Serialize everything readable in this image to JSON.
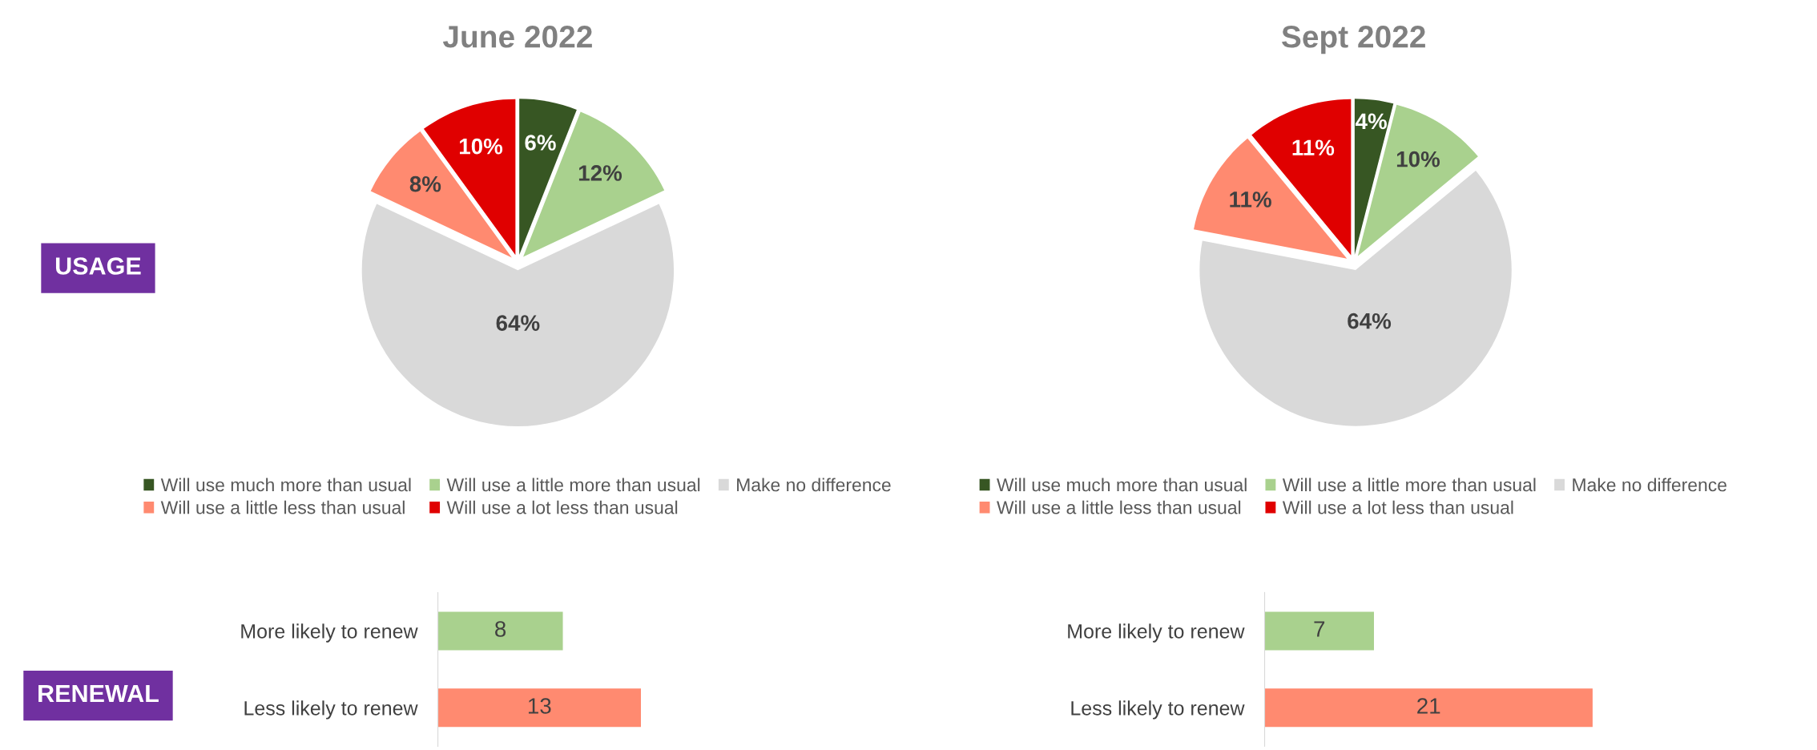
{
  "chart_data": [
    {
      "type": "other",
      "annotations": [
        "USAGE"
      ]
    },
    {
      "type": "pie",
      "title": "June 2022",
      "categories": [
        "Will use much more than usual",
        "Will use a little more than usual",
        "Make no difference",
        "Will use a little less than usual",
        "Will use a lot less than usual"
      ],
      "values": [
        6,
        12,
        64,
        8,
        10
      ],
      "colors": [
        "#375623",
        "#a9d18e",
        "#d9d9d9",
        "#ff8a70",
        "#e00000"
      ],
      "value_labels": [
        "6%",
        "12%",
        "64%",
        "8%",
        "10%"
      ],
      "legend": "bottom"
    },
    {
      "type": "pie",
      "title": "Sept 2022",
      "categories": [
        "Will use much more than usual",
        "Will use a little more than usual",
        "Make no difference",
        "Will use a little less than usual",
        "Will use a lot less than usual"
      ],
      "values": [
        4,
        10,
        64,
        11,
        11
      ],
      "colors": [
        "#375623",
        "#a9d18e",
        "#d9d9d9",
        "#ff8a70",
        "#e00000"
      ],
      "value_labels": [
        "4%",
        "10%",
        "64%",
        "11%",
        "11%"
      ],
      "legend": "bottom"
    },
    {
      "type": "other",
      "annotations": [
        "RENEWAL"
      ]
    },
    {
      "type": "bar",
      "orientation": "horizontal",
      "categories": [
        "More likely to renew",
        "Less likely to renew"
      ],
      "values": [
        8,
        13
      ],
      "colors": [
        "#a9d18e",
        "#ff8a70"
      ],
      "data_labels": true,
      "tick_labels": "y"
    },
    {
      "type": "bar",
      "orientation": "horizontal",
      "categories": [
        "More likely to renew",
        "Less likely to renew"
      ],
      "values": [
        7,
        21
      ],
      "colors": [
        "#a9d18e",
        "#ff8a70"
      ],
      "data_labels": true,
      "tick_labels": "y"
    }
  ]
}
